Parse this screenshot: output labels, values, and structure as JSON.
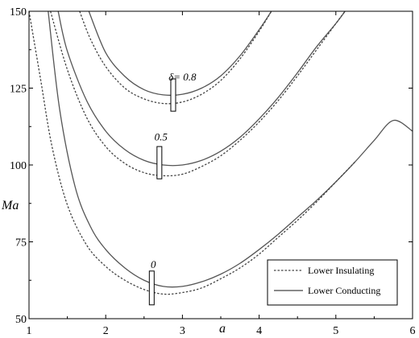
{
  "chart_data": {
    "type": "line",
    "xlabel": "a",
    "ylabel": "Ma",
    "xlim": [
      1,
      6
    ],
    "ylim": [
      50,
      150
    ],
    "xticks": [
      "1",
      "2",
      "3",
      "4",
      "5",
      "6"
    ],
    "yticks": [
      "50",
      "75",
      "100",
      "125",
      "150"
    ],
    "legend": {
      "position": "bottom-right",
      "entries": [
        {
          "label": "Lower Insulating",
          "style": "dotted"
        },
        {
          "label": "Lower Conducting",
          "style": "solid"
        }
      ]
    },
    "annotations": [
      {
        "text": "δ= 0.8",
        "x": 3.0,
        "y": 127.5
      },
      {
        "text": "0.5",
        "x": 2.72,
        "y": 108
      },
      {
        "text": "0",
        "x": 2.62,
        "y": 66.5
      }
    ],
    "markers": [
      {
        "x": 2.88,
        "y_low": 117.5,
        "y_high": 128
      },
      {
        "x": 2.7,
        "y_low": 95.5,
        "y_high": 106
      },
      {
        "x": 2.6,
        "y_low": 54.5,
        "y_high": 65.5
      }
    ],
    "series": [
      {
        "group": "δ= 0.8",
        "legend": "Lower Conducting",
        "style": "solid",
        "x": [
          1.78,
          2.0,
          2.25,
          2.5,
          2.75,
          3.0,
          3.25,
          3.5,
          3.75,
          4.0,
          4.16
        ],
        "y": [
          150,
          136.5,
          128.8,
          124.5,
          122.8,
          123,
          125,
          129,
          135.5,
          144,
          150
        ]
      },
      {
        "group": "δ= 0.8",
        "legend": "Lower Insulating",
        "style": "dotted",
        "x": [
          1.66,
          1.8,
          2.0,
          2.25,
          2.5,
          2.75,
          3.0,
          3.25,
          3.5,
          3.75,
          4.0,
          4.16
        ],
        "y": [
          150,
          141,
          132,
          125,
          121.5,
          120,
          120.5,
          123,
          127.5,
          134.5,
          143.5,
          150
        ]
      },
      {
        "group": "0.5",
        "legend": "Lower Conducting",
        "style": "solid",
        "x": [
          1.38,
          1.5,
          1.75,
          2.0,
          2.25,
          2.5,
          2.75,
          3.0,
          3.25,
          3.5,
          3.75,
          4.0,
          4.25,
          4.5,
          4.75,
          5.0,
          5.12
        ],
        "y": [
          150,
          137,
          121,
          111,
          105,
          101.5,
          100,
          100,
          101.5,
          104.5,
          109,
          115,
          122,
          130,
          138.5,
          146,
          150
        ]
      },
      {
        "group": "0.5",
        "legend": "Lower Insulating",
        "style": "dotted",
        "x": [
          1.28,
          1.5,
          1.75,
          2.0,
          2.25,
          2.5,
          2.75,
          3.0,
          3.25,
          3.5,
          3.75,
          4.0,
          4.25,
          4.5,
          4.75,
          5.0,
          5.12
        ],
        "y": [
          150,
          131,
          115.5,
          106,
          100.5,
          97.5,
          96.5,
          97,
          99.5,
          103,
          108,
          114,
          121,
          129,
          137.5,
          146,
          150
        ]
      },
      {
        "group": "0",
        "legend": "Lower Conducting",
        "style": "solid",
        "x": [
          1.25,
          1.4,
          1.6,
          1.8,
          2.0,
          2.25,
          2.5,
          2.75,
          3.0,
          3.25,
          3.5,
          3.75,
          4.0,
          4.25,
          4.5,
          4.75,
          5.0,
          5.25,
          5.5,
          5.75,
          6.0
        ],
        "y": [
          150,
          118,
          93,
          80,
          72.5,
          66.5,
          62.5,
          60.5,
          60.5,
          62,
          64.5,
          68,
          72.5,
          77.5,
          83,
          88.5,
          94.5,
          101,
          108,
          114.5,
          111
        ]
      },
      {
        "group": "0",
        "legend": "Lower Insulating",
        "style": "dotted",
        "x": [
          1.0,
          1.15,
          1.3,
          1.5,
          1.75,
          2.0,
          2.25,
          2.5,
          2.75,
          3.0,
          3.25,
          3.5,
          3.75,
          4.0,
          4.25,
          4.5,
          4.75,
          5.0,
          5.25
        ],
        "y": [
          150,
          128,
          106,
          87,
          74,
          67,
          62.5,
          59.5,
          58,
          58.5,
          60,
          63,
          66.5,
          71,
          76.5,
          82,
          88,
          94.5,
          101
        ]
      }
    ]
  }
}
